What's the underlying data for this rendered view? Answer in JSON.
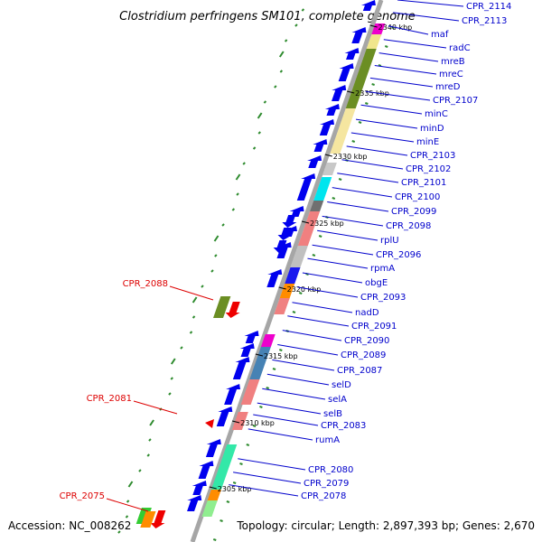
{
  "title": "Clostridium perfringens SM101, complete genome",
  "footer": {
    "accession": "Accession: NC_008262",
    "topology": "Topology: circular; Length: 2,897,393 bp; Genes: 2,670"
  },
  "colors": {
    "forward_label": "#0000cc",
    "reverse_label": "#dd0000",
    "backbone": "#a6a6a6",
    "gene_arrow": "#0000ee",
    "gc_skew": "#2e8b2e"
  },
  "ticks": [
    "2340 kbp",
    "2335 kbp",
    "2330 kbp",
    "2325 kbp",
    "2320 kbp",
    "2315 kbp",
    "2310 kbp",
    "2305 kbp"
  ],
  "forward_labels": [
    "CPR_2114",
    "CPR_2113",
    "maf",
    "radC",
    "mreB",
    "mreC",
    "mreD",
    "CPR_2107",
    "minC",
    "minD",
    "minE",
    "CPR_2103",
    "CPR_2102",
    "CPR_2101",
    "CPR_2100",
    "CPR_2099",
    "CPR_2098",
    "rplU",
    "CPR_2096",
    "rpmA",
    "obgE",
    "CPR_2093",
    "nadD",
    "CPR_2091",
    "CPR_2090",
    "CPR_2089",
    "CPR_2087",
    "selD",
    "selA",
    "selB",
    "CPR_2083",
    "rumA",
    "CPR_2080",
    "CPR_2079",
    "CPR_2078"
  ],
  "reverse_labels": [
    "CPR_2088",
    "CPR_2081",
    "CPR_2075"
  ]
}
